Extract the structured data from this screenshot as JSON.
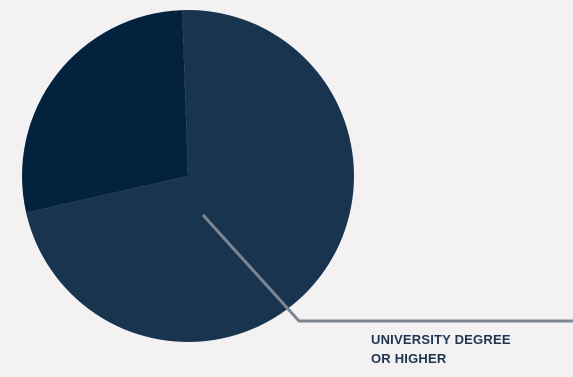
{
  "chart_data": {
    "type": "pie",
    "slices": [
      {
        "label": "UNIVERSITY DEGREE OR HIGHER",
        "value": 72,
        "color": "#19344f"
      },
      {
        "label": "",
        "value": 28,
        "color": "#02223e"
      }
    ],
    "annotation": {
      "line1": "UNIVERSITY DEGREE",
      "line2": "OR HIGHER",
      "line_color": "#7c8793"
    },
    "title": "",
    "legend": "none"
  }
}
